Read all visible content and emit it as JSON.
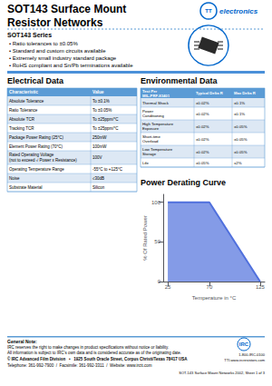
{
  "chart_data": {
    "type": "area",
    "title": "Power Derating Curve",
    "x": [
      25,
      70,
      125
    ],
    "values": [
      100,
      100,
      0
    ],
    "xlabel": "Temperature in °C",
    "ylabel": "% Of Rated Power",
    "xlim": [
      20,
      130
    ],
    "ylim": [
      0,
      110
    ],
    "xticks": [
      25,
      70,
      125
    ],
    "yticks": [
      0,
      50,
      100
    ],
    "grid": false,
    "annotations": [
      "SOT143 Surface Mount",
      "Resistor Networks",
      "TT",
      "electronics",
      "SOT143 Series",
      "• Ratio tolerances to ±0.05%",
      "• Standard and custom circuits available",
      "• Extremely small industry standard package",
      "• RoHS compliant and Sn/Pb terminations available",
      "General Note:",
      "IRC reserves the right to make changes in product specifications without notice or liability.",
      "All information is subject to IRC's own data and is considered accurate as of the originating date.",
      "© IRC Advanced Film Division   •   1925 South Oracle Street, Corpus Christi/Texas 78417 USA",
      "Telephone: 361-992-7900  /  Facsimile: 361-992-3311  /  Website: www.irctt.com",
      "IRC",
      "1-800-IRC-0100",
      "TTI.www.ircresistors.com",
      "SOT-143 Surface Mount Networks 2002, Sheet 1 of 3"
    ],
    "tables": [
      {
        "title": "Electrical Data",
        "headers": [
          "Characteristic",
          "Value"
        ],
        "rows": [
          [
            "Absolute Tolerance",
            "To ±0.1%"
          ],
          [
            "Ratio Tolerance",
            "To ±0.05%"
          ],
          [
            "Absolute TCR",
            "To ±25ppm/°C"
          ],
          [
            "Tracking TCR",
            "To ±25ppm/°C"
          ],
          [
            "Package Power Rating (25°C)",
            "250mW"
          ],
          [
            "Element Power Rating (70°C)",
            "100mW"
          ],
          [
            "Rated Operating Voltage\n(not to exceed √ Power x Resistance)",
            "100V"
          ],
          [
            "Operating Temperature Range",
            "-55°C to +125°C"
          ],
          [
            "Noise",
            "≤30dB"
          ],
          [
            "Substrate Material",
            "Silicon"
          ]
        ]
      },
      {
        "title": "Environmental Data",
        "headers": [
          "Test Per\nMIL-PRF-83401",
          "Typical Delta R",
          "Max Delta R"
        ],
        "rows": [
          [
            "Thermal Shock",
            "±0.02%",
            "±0.1%"
          ],
          [
            "Power\nConditioning",
            "±0.02%",
            "±0.1%"
          ],
          [
            "High Temperature\nExposure",
            "±0.02%",
            "±0.05%"
          ],
          [
            "Short-time\nOverload",
            "±0.02%",
            "±0.05%"
          ],
          [
            "Low Temperature\nStorage",
            "±0.02%",
            "±0.05%"
          ],
          [
            "Life",
            "±0.05%",
            "±2%"
          ]
        ]
      }
    ]
  }
}
